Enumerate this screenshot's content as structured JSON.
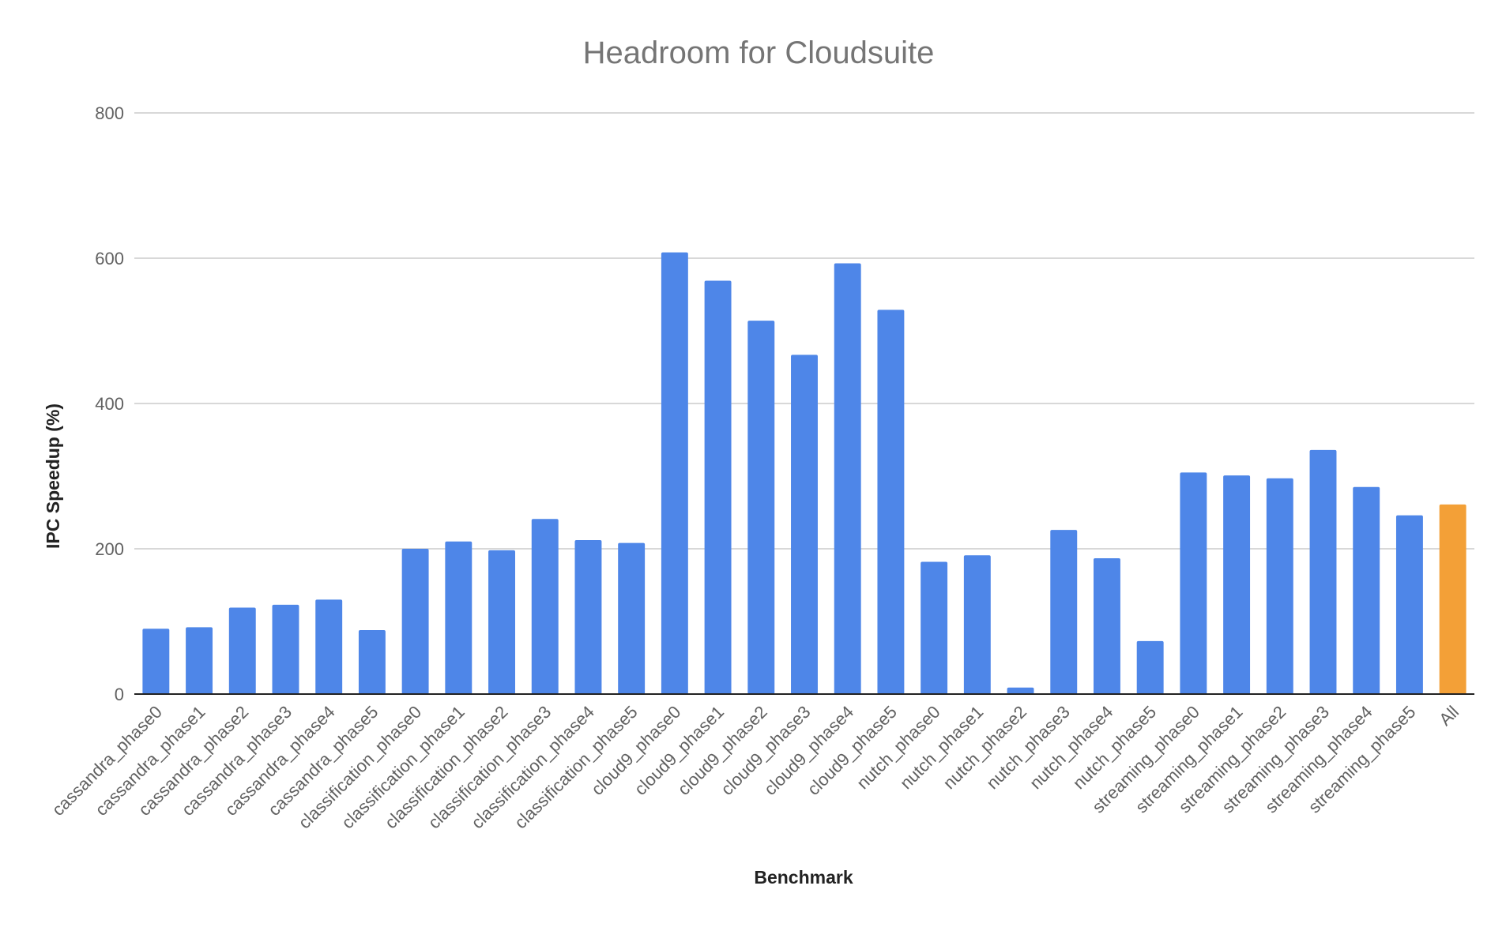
{
  "chart_data": {
    "type": "bar",
    "title": "Headroom for Cloudsuite",
    "xlabel": "Benchmark",
    "ylabel": "IPC Speedup (%)",
    "ylim": [
      0,
      800
    ],
    "yticks": [
      0,
      200,
      400,
      600,
      800
    ],
    "grid": true,
    "legend": "none",
    "categories": [
      "cassandra_phase0",
      "cassandra_phase1",
      "cassandra_phase2",
      "cassandra_phase3",
      "cassandra_phase4",
      "cassandra_phase5",
      "classification_phase0",
      "classification_phase1",
      "classification_phase2",
      "classification_phase3",
      "classification_phase4",
      "classification_phase5",
      "cloud9_phase0",
      "cloud9_phase1",
      "cloud9_phase2",
      "cloud9_phase3",
      "cloud9_phase4",
      "cloud9_phase5",
      "nutch_phase0",
      "nutch_phase1",
      "nutch_phase2",
      "nutch_phase3",
      "nutch_phase4",
      "nutch_phase5",
      "streaming_phase0",
      "streaming_phase1",
      "streaming_phase2",
      "streaming_phase3",
      "streaming_phase4",
      "streaming_phase5",
      "All"
    ],
    "values": [
      90,
      92,
      119,
      123,
      130,
      88,
      200,
      210,
      198,
      241,
      212,
      208,
      608,
      569,
      514,
      467,
      593,
      529,
      182,
      191,
      9,
      226,
      187,
      73,
      305,
      301,
      297,
      336,
      285,
      246,
      261
    ],
    "bar_color": "#4e86e8",
    "highlight_color": "#f3a037",
    "highlight_category": "All"
  }
}
